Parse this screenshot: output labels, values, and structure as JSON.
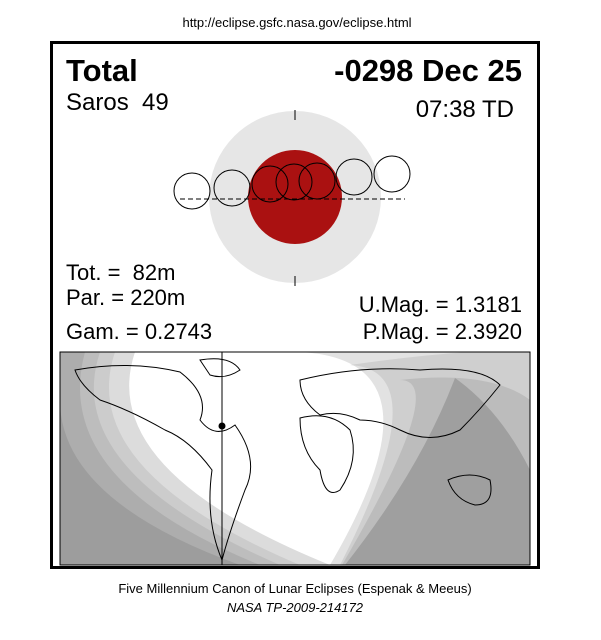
{
  "header": {
    "url": "http://eclipse.gsfc.nasa.gov/eclipse.html"
  },
  "eclipse": {
    "type": "Total",
    "date": "-0298 Dec 25",
    "saros": "Saros  49",
    "time": "07:38 TD",
    "total_duration": "Tot. =  82m",
    "partial_duration": "Par. = 220m",
    "gamma": "Gam. = 0.2743",
    "umbral_magnitude": "U.Mag. = 1.3181",
    "penumbral_magnitude": "P.Mag. = 2.3920"
  },
  "footer": {
    "caption": "Five Millennium Canon of Lunar Eclipses (Espenak & Meeus)",
    "reference": "NASA TP-2009-214172"
  }
}
